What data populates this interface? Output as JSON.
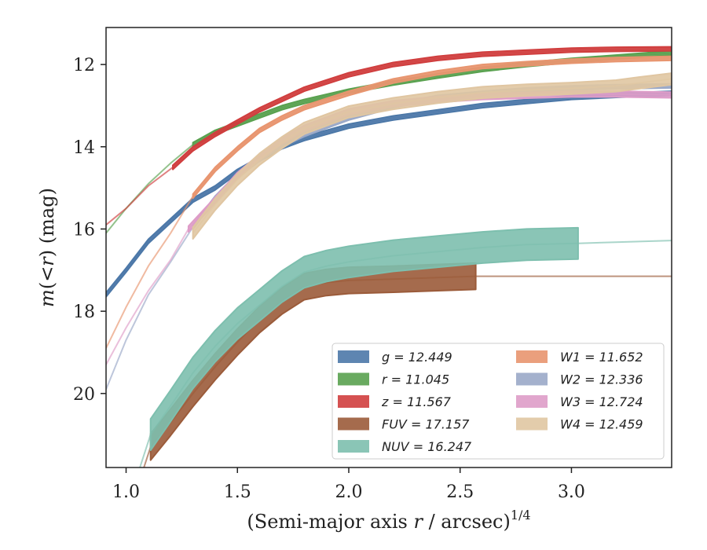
{
  "chart_data": {
    "type": "line",
    "xlabel": "(Semi-major axis r / arcsec)^{1/4}",
    "ylabel": "m(< r) (mag)",
    "xlim": [
      0.91,
      3.45
    ],
    "ylim": [
      21.8,
      11.1
    ],
    "y_inverted": true,
    "grid": false,
    "legend_placement": "lower-right",
    "xticks": [
      1.0,
      1.5,
      2.0,
      2.5,
      3.0
    ],
    "xtick_labels": [
      "1.0",
      "1.5",
      "2.0",
      "2.5",
      "3.0"
    ],
    "yticks": [
      12,
      14,
      16,
      18,
      20
    ],
    "ytick_labels": [
      "12",
      "14",
      "16",
      "18",
      "20"
    ],
    "series": [
      {
        "name": "g = 12.449",
        "color": "#4c78a8",
        "band": 0.05,
        "thin_until": 0.0,
        "x": [
          0.91,
          1.0,
          1.1,
          1.2,
          1.3,
          1.4,
          1.5,
          1.6,
          1.7,
          1.8,
          2.0,
          2.2,
          2.4,
          2.6,
          2.8,
          3.0,
          3.2,
          3.45
        ],
        "y": [
          17.6,
          17.0,
          16.3,
          15.8,
          15.3,
          15.0,
          14.6,
          14.3,
          14.0,
          13.8,
          13.5,
          13.3,
          13.15,
          13.0,
          12.9,
          12.8,
          12.75,
          12.7
        ]
      },
      {
        "name": "r = 11.045",
        "color": "#59a14f",
        "band": 0.05,
        "thin_until": 1.3,
        "x": [
          0.91,
          1.0,
          1.1,
          1.2,
          1.3,
          1.4,
          1.5,
          1.6,
          1.7,
          1.8,
          2.0,
          2.2,
          2.4,
          2.6,
          2.8,
          3.0,
          3.2,
          3.45
        ],
        "y": [
          16.1,
          15.5,
          14.9,
          14.4,
          13.95,
          13.65,
          13.45,
          13.25,
          13.05,
          12.9,
          12.65,
          12.45,
          12.28,
          12.12,
          12.0,
          11.9,
          11.82,
          11.72
        ]
      },
      {
        "name": "z = 11.567",
        "color": "#d03e3e",
        "band": 0.05,
        "thin_until": 1.21,
        "x": [
          0.91,
          1.0,
          1.1,
          1.21,
          1.3,
          1.4,
          1.5,
          1.6,
          1.7,
          1.8,
          2.0,
          2.2,
          2.4,
          2.6,
          2.8,
          3.0,
          3.2,
          3.45
        ],
        "y": [
          15.9,
          15.5,
          14.95,
          14.5,
          14.05,
          13.7,
          13.4,
          13.1,
          12.85,
          12.6,
          12.25,
          12.0,
          11.85,
          11.75,
          11.7,
          11.65,
          11.63,
          11.62
        ]
      },
      {
        "name": "FUV = 17.157",
        "color": "#9b5b3a",
        "band": 0.32,
        "thin_until": 1.11,
        "thin_after": 2.57,
        "x": [
          1.02,
          1.11,
          1.2,
          1.3,
          1.4,
          1.5,
          1.6,
          1.7,
          1.8,
          1.9,
          2.0,
          2.2,
          2.4,
          2.57,
          2.8,
          3.0,
          3.2,
          3.45
        ],
        "y": [
          22.8,
          21.3,
          20.7,
          20.0,
          19.35,
          18.75,
          18.2,
          17.75,
          17.4,
          17.3,
          17.25,
          17.22,
          17.18,
          17.15,
          17.15,
          17.15,
          17.15,
          17.15
        ]
      },
      {
        "name": "NUV = 16.247",
        "color": "#7dbfae",
        "band": 0.38,
        "thin_until": 1.11,
        "thin_after": 3.03,
        "x": [
          1.02,
          1.11,
          1.2,
          1.3,
          1.4,
          1.5,
          1.6,
          1.7,
          1.8,
          1.9,
          2.0,
          2.2,
          2.4,
          2.6,
          2.8,
          3.03,
          3.2,
          3.45
        ],
        "y": [
          22.5,
          21.0,
          20.3,
          19.5,
          18.85,
          18.3,
          17.85,
          17.4,
          17.05,
          16.9,
          16.8,
          16.65,
          16.55,
          16.45,
          16.38,
          16.35,
          16.32,
          16.28
        ]
      },
      {
        "name": "W1 = 11.652",
        "color": "#e8956f",
        "band": 0.05,
        "thin_until": 1.3,
        "x": [
          0.91,
          1.0,
          1.1,
          1.2,
          1.3,
          1.4,
          1.5,
          1.6,
          1.7,
          1.8,
          2.0,
          2.2,
          2.4,
          2.6,
          2.8,
          3.0,
          3.2,
          3.45
        ],
        "y": [
          18.9,
          17.9,
          16.9,
          16.1,
          15.2,
          14.55,
          14.05,
          13.6,
          13.3,
          13.05,
          12.7,
          12.4,
          12.2,
          12.05,
          11.98,
          11.92,
          11.88,
          11.85
        ]
      },
      {
        "name": "W2 = 12.336",
        "color": "#9aa8c8",
        "band": 0.05,
        "thin_until": 1.3,
        "x": [
          0.91,
          1.0,
          1.1,
          1.2,
          1.3,
          1.4,
          1.5,
          1.6,
          1.7,
          1.8,
          2.0,
          2.2,
          2.4,
          2.6,
          2.8,
          3.0,
          3.2,
          3.45
        ],
        "y": [
          19.9,
          18.7,
          17.6,
          16.8,
          15.95,
          15.25,
          14.7,
          14.3,
          13.95,
          13.7,
          13.3,
          13.0,
          12.8,
          12.7,
          12.62,
          12.57,
          12.54,
          12.52
        ]
      },
      {
        "name": "W3 = 12.724",
        "color": "#de9cc8",
        "band": 0.07,
        "thin_until": 1.28,
        "x": [
          0.91,
          1.0,
          1.1,
          1.2,
          1.28,
          1.4,
          1.5,
          1.6,
          1.7,
          1.8,
          2.0,
          2.2,
          2.4,
          2.6,
          2.8,
          3.0,
          3.2,
          3.45
        ],
        "y": [
          19.3,
          18.4,
          17.5,
          16.75,
          16.0,
          15.3,
          14.7,
          14.25,
          13.85,
          13.55,
          13.15,
          12.95,
          12.85,
          12.78,
          12.75,
          12.72,
          12.72,
          12.74
        ]
      },
      {
        "name": "W4 = 12.459",
        "color": "#e0c6a2",
        "band": 0.14,
        "thin_until": 1.3,
        "x": [
          1.3,
          1.4,
          1.5,
          1.6,
          1.7,
          1.8,
          2.0,
          2.2,
          2.4,
          2.6,
          2.8,
          3.0,
          3.2,
          3.3,
          3.45
        ],
        "y": [
          16.1,
          15.4,
          14.8,
          14.3,
          13.9,
          13.55,
          13.15,
          12.95,
          12.8,
          12.68,
          12.62,
          12.58,
          12.52,
          12.45,
          12.35
        ]
      }
    ]
  }
}
